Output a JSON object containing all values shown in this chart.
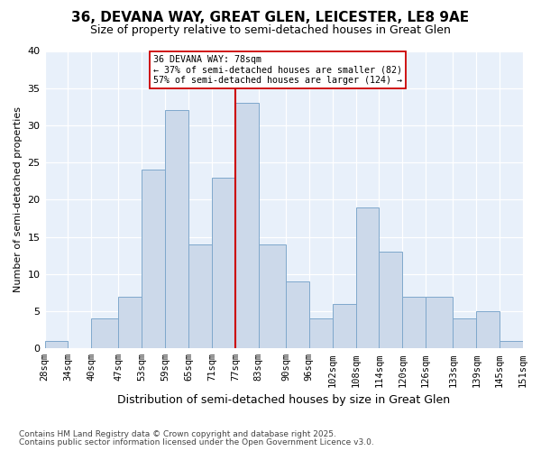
{
  "title1": "36, DEVANA WAY, GREAT GLEN, LEICESTER, LE8 9AE",
  "title2": "Size of property relative to semi-detached houses in Great Glen",
  "xlabel": "Distribution of semi-detached houses by size in Great Glen",
  "ylabel": "Number of semi-detached properties",
  "categories": [
    "28sqm",
    "34sqm",
    "40sqm",
    "47sqm",
    "53sqm",
    "59sqm",
    "65sqm",
    "71sqm",
    "77sqm",
    "83sqm",
    "90sqm",
    "96sqm",
    "102sqm",
    "108sqm",
    "114sqm",
    "120sqm",
    "126sqm",
    "133sqm",
    "139sqm",
    "145sqm",
    "151sqm"
  ],
  "values": [
    1,
    0,
    4,
    7,
    24,
    32,
    14,
    23,
    33,
    14,
    9,
    4,
    6,
    19,
    13,
    7,
    7,
    4,
    5,
    1
  ],
  "bar_color": "#ccd9ea",
  "bar_edge_color": "#7fa8cc",
  "vline_x": 77,
  "annotation_title": "36 DEVANA WAY: 78sqm",
  "annotation_line1": "← 37% of semi-detached houses are smaller (82)",
  "annotation_line2": "57% of semi-detached houses are larger (124) →",
  "annotation_box_color": "#ffffff",
  "annotation_box_edge": "#cc0000",
  "vline_color": "#cc0000",
  "bg_color": "#ffffff",
  "plot_bg_color": "#e8f0fa",
  "ylim": [
    0,
    40
  ],
  "yticks": [
    0,
    5,
    10,
    15,
    20,
    25,
    30,
    35,
    40
  ],
  "footer1": "Contains HM Land Registry data © Crown copyright and database right 2025.",
  "footer2": "Contains public sector information licensed under the Open Government Licence v3.0."
}
